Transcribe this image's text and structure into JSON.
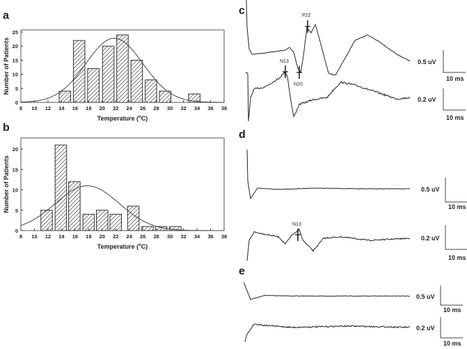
{
  "panels": {
    "a": "a",
    "b": "b",
    "c": "c",
    "d": "d",
    "e": "e"
  },
  "chart_data": [
    {
      "type": "bar",
      "panel": "a",
      "xlabel": "Temperature (°C)",
      "xlabel_main": "Temperature (",
      "xlabel_sup": "o",
      "xlabel_end": "C)",
      "ylabel": "Number of Patients",
      "xlim": [
        8,
        38
      ],
      "ylim": [
        0,
        25
      ],
      "xticks": [
        8,
        10,
        12,
        14,
        16,
        18,
        20,
        22,
        24,
        26,
        28,
        30,
        32,
        34,
        36,
        38
      ],
      "yticks": [
        0,
        5,
        10,
        15,
        20,
        25
      ],
      "x": [
        14.5,
        16.6,
        18.7,
        20.9,
        23.0,
        25.1,
        27.2,
        29.3,
        33.6
      ],
      "values": [
        4,
        22,
        12,
        20,
        24,
        15,
        8,
        4,
        3
      ],
      "fit_curve": {
        "type": "normal",
        "mean": 21.8,
        "sd": 4.2,
        "peak": 22.8
      }
    },
    {
      "type": "bar",
      "panel": "b",
      "xlabel": "Temperature (°C)",
      "xlabel_main": "Temperature (",
      "xlabel_sup": "o",
      "xlabel_end": "C)",
      "ylabel": "Number of Patients",
      "xlim": [
        8,
        38
      ],
      "ylim": [
        0,
        23
      ],
      "xticks": [
        8,
        10,
        12,
        14,
        16,
        18,
        20,
        22,
        24,
        26,
        28,
        30,
        32,
        34,
        36,
        38
      ],
      "yticks": [
        0,
        5,
        10,
        15,
        20
      ],
      "x": [
        11.8,
        13.9,
        15.9,
        18.0,
        20.0,
        22.0,
        24.6,
        26.7,
        28.7,
        30.8
      ],
      "values": [
        5,
        21,
        12,
        4,
        5,
        4,
        6,
        1,
        1,
        1
      ],
      "fit_curve": {
        "type": "normal",
        "mean": 17.8,
        "sd": 4.7,
        "peak": 11
      }
    }
  ],
  "traces": {
    "c": {
      "peaks": [
        "N13",
        "N20",
        "P22"
      ],
      "scales": [
        {
          "amp": "0.5 uV",
          "time": "10 ms"
        },
        {
          "amp": "0.2 uV",
          "time": "10 ms"
        }
      ]
    },
    "d": {
      "peaks": [
        "N13"
      ],
      "scales": [
        {
          "amp": "0.5 uV",
          "time": "10 ms"
        },
        {
          "amp": "0.2 uV",
          "time": "10 ms"
        }
      ]
    },
    "e": {
      "scales": [
        {
          "amp": "0.5 uV",
          "time": "10 ms"
        },
        {
          "amp": "0.2 uV",
          "time": "10 ms"
        }
      ]
    }
  }
}
